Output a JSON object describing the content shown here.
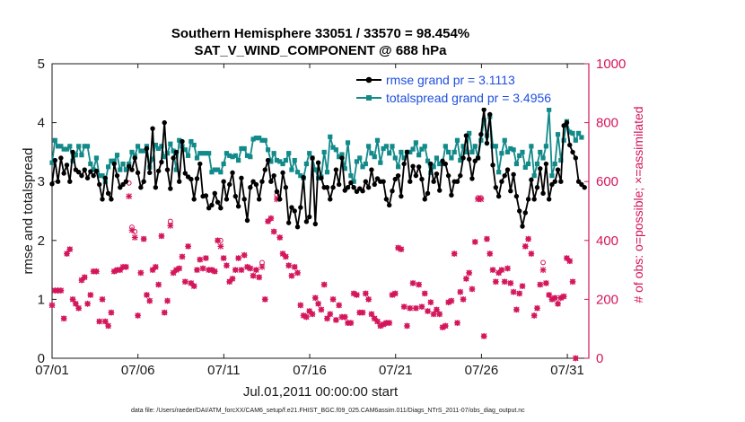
{
  "chart_data": {
    "type": "line",
    "title": "Southern Hemisphere 33051 / 33570 = 98.454%",
    "subtitle": "SAT_V_WIND_COMPONENT @ 688 hPa",
    "xlabel": "Jul.01,2011 00:00:00 start",
    "ylabel": "rmse and totalspread",
    "ylabel_right": "# of obs: o=possible; ×=assimilated",
    "footer": "data file: /Users/raeder/DAI/ATM_forcXX/CAM6_setup/f.e21.FHIST_BGC.f09_025.CAM6assim.011/Diags_NTrS_2011-07/obs_diag_output.nc",
    "xlim": [
      0,
      31.25
    ],
    "ylim": [
      0,
      5
    ],
    "ylim_right": [
      0,
      1000
    ],
    "x_ticks": [
      0,
      5,
      10,
      15,
      20,
      25,
      30
    ],
    "x_tick_labels": [
      "07/01",
      "07/06",
      "07/11",
      "07/16",
      "07/21",
      "07/26",
      "07/31"
    ],
    "y_ticks": [
      0,
      1,
      2,
      3,
      4,
      5
    ],
    "y_ticks_right": [
      0,
      200,
      400,
      600,
      800,
      1000
    ],
    "legend_position": "top-right",
    "colors": {
      "rmse": "#000000",
      "spread": "#138a8a",
      "obs": "#d4145a",
      "legend_text": "#1f4fe0",
      "axis_right": "#d4145a"
    },
    "series": [
      {
        "name": "rmse grand pr = 3.1113",
        "color": "#000000",
        "values": [
          2.96,
          3.36,
          3.0,
          3.4,
          3.14,
          3.28,
          3.0,
          3.5,
          3.2,
          3.16,
          3.1,
          3.2,
          3.06,
          3.17,
          3.1,
          3.18,
          2.95,
          2.7,
          3.06,
          2.8,
          2.7,
          3.3,
          3.1,
          2.9,
          2.95,
          3.0,
          3.26,
          3.2,
          3.4,
          3.15,
          2.9,
          3.0,
          3.56,
          3.15,
          3.9,
          2.9,
          3.18,
          3.33,
          4.0,
          3.2,
          2.88,
          3.4,
          3.5,
          3.0,
          3.68,
          3.14,
          3.08,
          3.04,
          2.7,
          3.05,
          3.3,
          2.75,
          2.76,
          2.55,
          2.6,
          2.8,
          2.65,
          2.55,
          3.0,
          2.7,
          2.95,
          3.15,
          2.75,
          2.58,
          3.06,
          2.7,
          2.34,
          2.9,
          3.0,
          2.95,
          2.7,
          3.0,
          3.2,
          3.36,
          3.0,
          3.1,
          2.83,
          2.7,
          3.15,
          2.9,
          2.3,
          2.56,
          2.5,
          2.23,
          2.56,
          3.07,
          2.32,
          2.4,
          3.4,
          2.28,
          3.32,
          3.06,
          2.9,
          2.9,
          2.7,
          2.9,
          3.2,
          2.95,
          3.4,
          2.85,
          2.9,
          2.98,
          2.9,
          2.83,
          2.88,
          2.84,
          3.0,
          2.9,
          3.2,
          2.95,
          3.05,
          3.0,
          3.0,
          2.7,
          2.6,
          2.84,
          3.04,
          3.1,
          2.75,
          3.3,
          3.5,
          3.0,
          3.26,
          3.1,
          3.25,
          3.04,
          2.7,
          2.8,
          3.3,
          3.0,
          3.13,
          2.85,
          3.35,
          3.3,
          3.1,
          2.77,
          3.0,
          3.0,
          3.1,
          3.4,
          3.78,
          3.38,
          3.05,
          3.35,
          3.4,
          3.8,
          4.22,
          3.65,
          4.14,
          3.28,
          2.9,
          2.75,
          3.0,
          3.1,
          3.2,
          2.84,
          3.12,
          2.75,
          2.5,
          2.24,
          2.47,
          2.7,
          3.03,
          2.7,
          2.9,
          3.22,
          2.8,
          3.3,
          2.7,
          2.95,
          3.0,
          3.2,
          3.0,
          3.95,
          4.0,
          3.62,
          3.5,
          3.4,
          3.0,
          2.95,
          2.9
        ]
      },
      {
        "name": "totalspread grand pr = 3.4956",
        "color": "#138a8a",
        "values": [
          3.32,
          3.7,
          3.6,
          3.6,
          3.55,
          3.55,
          3.6,
          3.35,
          3.45,
          3.6,
          3.45,
          3.6,
          3.6,
          3.3,
          3.2,
          3.4,
          3.1,
          3.1,
          3.0,
          3.25,
          3.35,
          3.35,
          3.45,
          3.2,
          3.3,
          3.2,
          3.3,
          3.5,
          3.44,
          3.6,
          3.52,
          3.52,
          3.6,
          3.24,
          3.38,
          3.62,
          3.56,
          3.6,
          3.42,
          3.48,
          3.64,
          3.52,
          3.2,
          3.7,
          3.6,
          3.54,
          3.44,
          3.68,
          3.62,
          3.4,
          3.48,
          3.48,
          3.48,
          3.48,
          3.16,
          3.2,
          3.2,
          3.16,
          3.3,
          3.48,
          3.44,
          3.42,
          3.44,
          3.36,
          3.56,
          3.56,
          3.44,
          3.42,
          3.72,
          3.74,
          3.74,
          3.7,
          3.7,
          3.54,
          3.34,
          3.48,
          3.36,
          3.34,
          3.3,
          3.36,
          3.48,
          3.2,
          3.36,
          3.16,
          3.1,
          3.06,
          3.3,
          3.48,
          3.4,
          3.2,
          3.06,
          3.08,
          3.5,
          3.16,
          3.76,
          3.58,
          3.54,
          3.42,
          3.46,
          3.22,
          3.66,
          3.1,
          3.0,
          3.34,
          3.4,
          3.25,
          3.3,
          3.6,
          3.48,
          3.42,
          3.7,
          3.32,
          3.56,
          3.6,
          3.48,
          3.6,
          3.4,
          3.25,
          3.5,
          3.4,
          3.5,
          3.5,
          3.55,
          3.66,
          3.45,
          3.55,
          3.6,
          3.35,
          3.15,
          3.25,
          3.4,
          3.3,
          3.3,
          3.6,
          3.5,
          3.4,
          3.5,
          3.7,
          3.36,
          3.6,
          3.5,
          3.82,
          3.5,
          3.6,
          3.4,
          3.7,
          4.04,
          3.78,
          4.1,
          3.6,
          3.6,
          3.16,
          3.48,
          3.7,
          3.5,
          3.56,
          3.54,
          3.3,
          3.44,
          3.5,
          3.24,
          3.3,
          3.6,
          3.1,
          3.3,
          3.5,
          3.4,
          3.6,
          4.22,
          3.1,
          3.3,
          3.8,
          3.36,
          3.7,
          4.02,
          3.84,
          3.82,
          3.7,
          3.82,
          3.75
        ]
      },
      {
        "name": "obs possible",
        "color": "#d4145a",
        "marker": "o",
        "values": [
          180,
          230,
          230,
          230,
          135,
          355,
          370,
          200,
          185,
          170,
          265,
          275,
          185,
          215,
          295,
          295,
          125,
          200,
          125,
          110,
          155,
          295,
          300,
          300,
          310,
          310,
          595,
          445,
          430,
          145,
          290,
          405,
          215,
          195,
          300,
          310,
          250,
          415,
          155,
          195,
          465,
          290,
          300,
          305,
          345,
          260,
          380,
          255,
          245,
          300,
          335,
          305,
          340,
          300,
          300,
          295,
          400,
          400,
          340,
          315,
          260,
          270,
          300,
          340,
          300,
          350,
          310,
          305,
          280,
          300,
          275,
          325,
          200,
          465,
          475,
          430,
          555,
          410,
          355,
          345,
          315,
          280,
          310,
          290,
          180,
          145,
          140,
          160,
          150,
          205,
          185,
          165,
          250,
          135,
          150,
          200,
          130,
          180,
          140,
          140,
          120,
          120,
          220,
          215,
          155,
          155,
          220,
          200,
          150,
          135,
          125,
          110,
          115,
          120,
          120,
          215,
          220,
          375,
          370,
          175,
          110,
          170,
          255,
          170,
          250,
          175,
          220,
          160,
          190,
          150,
          165,
          150,
          105,
          110,
          190,
          195,
          355,
          120,
          225,
          200,
          270,
          290,
          235,
          395,
          545,
          545,
          75,
          405,
          355,
          300,
          260,
          290,
          300,
          260,
          305,
          255,
          225,
          165,
          220,
          245,
          380,
          405,
          355,
          145,
          170,
          250,
          325,
          255,
          215,
          200,
          205,
          185,
          205,
          210,
          340,
          330,
          260,
          0
        ]
      },
      {
        "name": "obs assimilated",
        "color": "#d4145a",
        "marker": "x",
        "values": [
          180,
          230,
          230,
          230,
          135,
          355,
          370,
          200,
          185,
          170,
          265,
          275,
          185,
          215,
          295,
          295,
          125,
          200,
          125,
          110,
          155,
          295,
          300,
          300,
          310,
          310,
          550,
          435,
          410,
          145,
          290,
          405,
          215,
          195,
          300,
          310,
          250,
          415,
          155,
          195,
          450,
          290,
          300,
          305,
          345,
          260,
          380,
          255,
          245,
          300,
          335,
          305,
          340,
          300,
          300,
          295,
          400,
          380,
          340,
          315,
          260,
          270,
          300,
          340,
          300,
          350,
          310,
          305,
          280,
          300,
          275,
          310,
          200,
          465,
          475,
          430,
          540,
          410,
          355,
          345,
          315,
          280,
          310,
          290,
          180,
          145,
          140,
          160,
          150,
          205,
          185,
          165,
          250,
          135,
          150,
          200,
          130,
          180,
          140,
          140,
          120,
          120,
          220,
          215,
          155,
          155,
          220,
          200,
          150,
          135,
          125,
          110,
          115,
          120,
          120,
          215,
          220,
          375,
          370,
          175,
          110,
          170,
          255,
          170,
          250,
          175,
          220,
          160,
          190,
          150,
          165,
          150,
          105,
          110,
          190,
          195,
          355,
          120,
          225,
          200,
          270,
          290,
          235,
          395,
          540,
          540,
          75,
          405,
          355,
          300,
          260,
          290,
          300,
          260,
          305,
          255,
          225,
          165,
          220,
          245,
          380,
          405,
          355,
          145,
          170,
          250,
          300,
          255,
          215,
          200,
          205,
          185,
          205,
          210,
          340,
          330,
          260,
          0
        ]
      }
    ]
  }
}
